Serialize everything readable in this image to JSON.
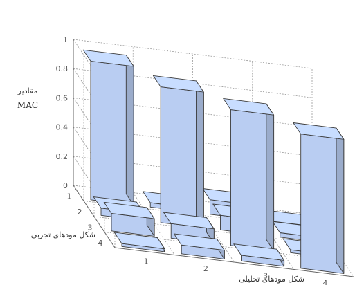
{
  "chart_data": {
    "type": "bar3d",
    "zlabel_line1": "مقادیر",
    "zlabel_line2": "MAC",
    "ylabel": "شکل مودهای تجربی",
    "xlabel": "شکل مودهای تحلیلی",
    "z_ticks": [
      "0",
      "0.2",
      "0.4",
      "0.6",
      "0.8",
      "1"
    ],
    "x_ticks": [
      "1",
      "2",
      "3",
      "4"
    ],
    "y_ticks": [
      "1",
      "2",
      "3",
      "4"
    ],
    "zlim": [
      0,
      1
    ],
    "bar_color": "#b9cdf2",
    "grid": true,
    "values": [
      [
        0.95,
        0.03,
        0.1,
        0.0
      ],
      [
        0.05,
        0.93,
        0.1,
        0.03
      ],
      [
        0.12,
        0.1,
        0.93,
        0.02
      ],
      [
        0.02,
        0.06,
        0.04,
        0.92
      ]
    ]
  }
}
